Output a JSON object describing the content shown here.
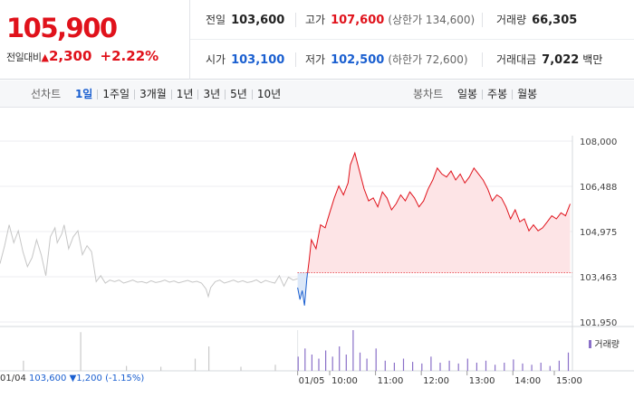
{
  "quote": {
    "price": "105,900",
    "change_label": "전일대비",
    "change_arrow": "▲",
    "change_value": "2,300",
    "change_pct": "+2.22%"
  },
  "stats": {
    "prev_close": {
      "label": "전일",
      "value": "103,600"
    },
    "high": {
      "label": "고가",
      "value": "107,600",
      "sub": "(상한가 134,600)"
    },
    "volume": {
      "label": "거래량",
      "value": "66,305"
    },
    "open": {
      "label": "시가",
      "value": "103,100"
    },
    "low": {
      "label": "저가",
      "value": "102,500",
      "sub": "(하한가 72,600)"
    },
    "amount": {
      "label": "거래대금",
      "value": "7,022",
      "unit": "백만"
    }
  },
  "toolbar": {
    "line_label": "선차트",
    "line_items": [
      "1일",
      "1주일",
      "3개월",
      "1년",
      "3년",
      "5년",
      "10년"
    ],
    "line_active": 0,
    "candle_label": "봉차트",
    "candle_items": [
      "일봉",
      "주봉",
      "월봉"
    ]
  },
  "footer": {
    "date": "01/04",
    "prev_price": "103,600",
    "arrow": "▼",
    "change": "1,200",
    "pct": "(-1.15%)"
  },
  "colors": {
    "up": "#e0121b",
    "down": "#1a5fd0",
    "prev_day_line": "#c6c6c6",
    "up_fill": "#fde4e6",
    "down_fill": "#dce8f8",
    "volume": "#8a70c8"
  },
  "chart_data": {
    "type": "line",
    "y_ticks": [
      "108,000",
      "106,488",
      "104,975",
      "103,463",
      "101,950"
    ],
    "ylim": [
      101950,
      108000
    ],
    "baseline": 103600,
    "x_date_labels": [
      "01/04",
      "01/05"
    ],
    "x_tick_labels": [
      "10:00",
      "11:00",
      "12:00",
      "13:00",
      "14:00",
      "15:00"
    ],
    "volume_legend": "거래량",
    "prev_day_series": [
      {
        "t": 0,
        "v": 103900
      },
      {
        "t": 0.2,
        "v": 104500
      },
      {
        "t": 0.4,
        "v": 105200
      },
      {
        "t": 0.6,
        "v": 104600
      },
      {
        "t": 0.8,
        "v": 105000
      },
      {
        "t": 1.0,
        "v": 104300
      },
      {
        "t": 1.2,
        "v": 103800
      },
      {
        "t": 1.4,
        "v": 104100
      },
      {
        "t": 1.6,
        "v": 104700
      },
      {
        "t": 1.8,
        "v": 104200
      },
      {
        "t": 2.0,
        "v": 103500
      },
      {
        "t": 2.2,
        "v": 104800
      },
      {
        "t": 2.4,
        "v": 105100
      },
      {
        "t": 2.5,
        "v": 104600
      },
      {
        "t": 2.7,
        "v": 104900
      },
      {
        "t": 2.8,
        "v": 105200
      },
      {
        "t": 3.0,
        "v": 104400
      },
      {
        "t": 3.2,
        "v": 104800
      },
      {
        "t": 3.4,
        "v": 105000
      },
      {
        "t": 3.6,
        "v": 104200
      },
      {
        "t": 3.8,
        "v": 104500
      },
      {
        "t": 4.0,
        "v": 104300
      },
      {
        "t": 4.2,
        "v": 103300
      },
      {
        "t": 4.4,
        "v": 103500
      },
      {
        "t": 4.6,
        "v": 103250
      },
      {
        "t": 4.8,
        "v": 103350
      },
      {
        "t": 5.0,
        "v": 103300
      },
      {
        "t": 5.2,
        "v": 103350
      },
      {
        "t": 5.4,
        "v": 103250
      },
      {
        "t": 5.6,
        "v": 103300
      },
      {
        "t": 5.8,
        "v": 103350
      },
      {
        "t": 6.0,
        "v": 103280
      },
      {
        "t": 6.2,
        "v": 103300
      },
      {
        "t": 6.4,
        "v": 103250
      },
      {
        "t": 6.6,
        "v": 103330
      },
      {
        "t": 6.8,
        "v": 103270
      },
      {
        "t": 7.0,
        "v": 103300
      },
      {
        "t": 7.2,
        "v": 103350
      },
      {
        "t": 7.4,
        "v": 103280
      },
      {
        "t": 7.6,
        "v": 103320
      },
      {
        "t": 7.8,
        "v": 103260
      },
      {
        "t": 8.0,
        "v": 103300
      },
      {
        "t": 8.2,
        "v": 103340
      },
      {
        "t": 8.4,
        "v": 103280
      },
      {
        "t": 8.6,
        "v": 103310
      },
      {
        "t": 8.8,
        "v": 103250
      },
      {
        "t": 9.0,
        "v": 103050
      },
      {
        "t": 9.1,
        "v": 102800
      },
      {
        "t": 9.2,
        "v": 103100
      },
      {
        "t": 9.4,
        "v": 103300
      },
      {
        "t": 9.6,
        "v": 103350
      },
      {
        "t": 9.8,
        "v": 103250
      },
      {
        "t": 10.0,
        "v": 103300
      },
      {
        "t": 10.2,
        "v": 103350
      },
      {
        "t": 10.4,
        "v": 103280
      },
      {
        "t": 10.6,
        "v": 103330
      },
      {
        "t": 10.8,
        "v": 103270
      },
      {
        "t": 11.0,
        "v": 103300
      },
      {
        "t": 11.2,
        "v": 103360
      },
      {
        "t": 11.4,
        "v": 103260
      },
      {
        "t": 11.6,
        "v": 103340
      },
      {
        "t": 11.8,
        "v": 103290
      },
      {
        "t": 12.0,
        "v": 103250
      },
      {
        "t": 12.2,
        "v": 103500
      },
      {
        "t": 12.4,
        "v": 103150
      },
      {
        "t": 12.6,
        "v": 103450
      },
      {
        "t": 12.8,
        "v": 103350
      },
      {
        "t": 13.0,
        "v": 103400
      }
    ],
    "series": [
      {
        "t": 13.0,
        "v": 103100
      },
      {
        "t": 13.1,
        "v": 102700
      },
      {
        "t": 13.2,
        "v": 103000
      },
      {
        "t": 13.3,
        "v": 102500
      },
      {
        "t": 13.4,
        "v": 103400
      },
      {
        "t": 13.5,
        "v": 104000
      },
      {
        "t": 13.6,
        "v": 104700
      },
      {
        "t": 13.8,
        "v": 104400
      },
      {
        "t": 14.0,
        "v": 105200
      },
      {
        "t": 14.2,
        "v": 105100
      },
      {
        "t": 14.4,
        "v": 105600
      },
      {
        "t": 14.6,
        "v": 106100
      },
      {
        "t": 14.8,
        "v": 106500
      },
      {
        "t": 15.0,
        "v": 106200
      },
      {
        "t": 15.2,
        "v": 106600
      },
      {
        "t": 15.3,
        "v": 107200
      },
      {
        "t": 15.5,
        "v": 107600
      },
      {
        "t": 15.7,
        "v": 107000
      },
      {
        "t": 15.9,
        "v": 106400
      },
      {
        "t": 16.1,
        "v": 106000
      },
      {
        "t": 16.3,
        "v": 106100
      },
      {
        "t": 16.5,
        "v": 105800
      },
      {
        "t": 16.7,
        "v": 106300
      },
      {
        "t": 16.9,
        "v": 106100
      },
      {
        "t": 17.1,
        "v": 105700
      },
      {
        "t": 17.3,
        "v": 105900
      },
      {
        "t": 17.5,
        "v": 106200
      },
      {
        "t": 17.7,
        "v": 106000
      },
      {
        "t": 17.9,
        "v": 106300
      },
      {
        "t": 18.1,
        "v": 106100
      },
      {
        "t": 18.3,
        "v": 105800
      },
      {
        "t": 18.5,
        "v": 106000
      },
      {
        "t": 18.7,
        "v": 106400
      },
      {
        "t": 18.9,
        "v": 106700
      },
      {
        "t": 19.1,
        "v": 107100
      },
      {
        "t": 19.3,
        "v": 106900
      },
      {
        "t": 19.5,
        "v": 106800
      },
      {
        "t": 19.7,
        "v": 107000
      },
      {
        "t": 19.9,
        "v": 106700
      },
      {
        "t": 20.1,
        "v": 106900
      },
      {
        "t": 20.3,
        "v": 106600
      },
      {
        "t": 20.5,
        "v": 106800
      },
      {
        "t": 20.7,
        "v": 107100
      },
      {
        "t": 20.9,
        "v": 106900
      },
      {
        "t": 21.1,
        "v": 106700
      },
      {
        "t": 21.3,
        "v": 106400
      },
      {
        "t": 21.5,
        "v": 106000
      },
      {
        "t": 21.7,
        "v": 106200
      },
      {
        "t": 21.9,
        "v": 106100
      },
      {
        "t": 22.1,
        "v": 105800
      },
      {
        "t": 22.3,
        "v": 105400
      },
      {
        "t": 22.5,
        "v": 105700
      },
      {
        "t": 22.7,
        "v": 105300
      },
      {
        "t": 22.9,
        "v": 105400
      },
      {
        "t": 23.1,
        "v": 105000
      },
      {
        "t": 23.3,
        "v": 105200
      },
      {
        "t": 23.5,
        "v": 105000
      },
      {
        "t": 23.7,
        "v": 105100
      },
      {
        "t": 23.9,
        "v": 105300
      },
      {
        "t": 24.1,
        "v": 105500
      },
      {
        "t": 24.3,
        "v": 105400
      },
      {
        "t": 24.5,
        "v": 105600
      },
      {
        "t": 24.7,
        "v": 105500
      },
      {
        "t": 24.9,
        "v": 105900
      }
    ],
    "volume_bars": [
      {
        "t": 1.0,
        "v": 0.25
      },
      {
        "t": 3.5,
        "v": 0.95
      },
      {
        "t": 5.5,
        "v": 0.12
      },
      {
        "t": 7.0,
        "v": 0.1
      },
      {
        "t": 8.5,
        "v": 0.3
      },
      {
        "t": 9.1,
        "v": 0.6
      },
      {
        "t": 10.5,
        "v": 0.1
      },
      {
        "t": 12.0,
        "v": 0.15
      },
      {
        "t": 13.0,
        "v": 0.35
      },
      {
        "t": 13.3,
        "v": 0.55
      },
      {
        "t": 13.6,
        "v": 0.4
      },
      {
        "t": 13.9,
        "v": 0.3
      },
      {
        "t": 14.2,
        "v": 0.5
      },
      {
        "t": 14.5,
        "v": 0.35
      },
      {
        "t": 14.8,
        "v": 0.6
      },
      {
        "t": 15.1,
        "v": 0.4
      },
      {
        "t": 15.4,
        "v": 1.0
      },
      {
        "t": 15.7,
        "v": 0.45
      },
      {
        "t": 16.0,
        "v": 0.3
      },
      {
        "t": 16.4,
        "v": 0.55
      },
      {
        "t": 16.8,
        "v": 0.25
      },
      {
        "t": 17.2,
        "v": 0.2
      },
      {
        "t": 17.6,
        "v": 0.3
      },
      {
        "t": 18.0,
        "v": 0.22
      },
      {
        "t": 18.4,
        "v": 0.18
      },
      {
        "t": 18.8,
        "v": 0.35
      },
      {
        "t": 19.2,
        "v": 0.2
      },
      {
        "t": 19.6,
        "v": 0.25
      },
      {
        "t": 20.0,
        "v": 0.18
      },
      {
        "t": 20.4,
        "v": 0.3
      },
      {
        "t": 20.8,
        "v": 0.2
      },
      {
        "t": 21.2,
        "v": 0.25
      },
      {
        "t": 21.6,
        "v": 0.15
      },
      {
        "t": 22.0,
        "v": 0.2
      },
      {
        "t": 22.4,
        "v": 0.28
      },
      {
        "t": 22.8,
        "v": 0.18
      },
      {
        "t": 23.2,
        "v": 0.15
      },
      {
        "t": 23.6,
        "v": 0.2
      },
      {
        "t": 24.0,
        "v": 0.12
      },
      {
        "t": 24.4,
        "v": 0.25
      },
      {
        "t": 24.8,
        "v": 0.45
      }
    ]
  }
}
